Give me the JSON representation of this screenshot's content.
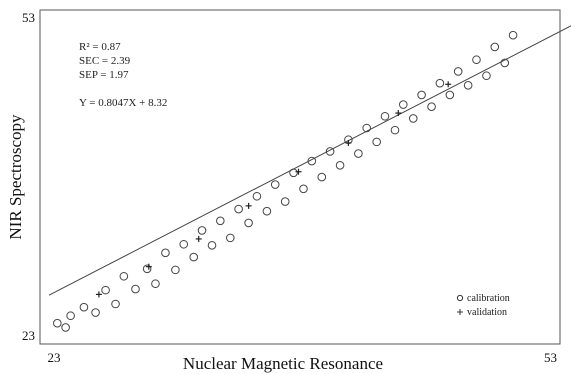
{
  "chart_data": {
    "type": "scatter",
    "title": "",
    "xlabel": "Nuclear Magnetic Resonance",
    "ylabel": "NIR Spectroscopy",
    "xlim": [
      23,
      53
    ],
    "ylim": [
      23,
      53
    ],
    "x_tick_labels": [
      "23",
      "53"
    ],
    "y_tick_labels": [
      "53",
      "23"
    ],
    "grid": false,
    "legend_position": "bottom-right",
    "stats": {
      "r2": "R² = 0.87",
      "sec": "SEC = 2.39",
      "sep": "SEP = 1.97",
      "equation": "Y = 0.8047X + 8.32"
    },
    "fit_line": {
      "slope": 0.8047,
      "intercept": 8.32
    },
    "series": [
      {
        "name": "calibration",
        "marker": "circle",
        "points": [
          [
            23.5,
            24.2
          ],
          [
            24.0,
            23.8
          ],
          [
            24.3,
            24.9
          ],
          [
            25.1,
            25.7
          ],
          [
            25.8,
            25.2
          ],
          [
            26.4,
            27.3
          ],
          [
            27.0,
            26.0
          ],
          [
            27.5,
            28.6
          ],
          [
            28.2,
            27.4
          ],
          [
            28.9,
            29.3
          ],
          [
            29.4,
            27.9
          ],
          [
            30.0,
            30.8
          ],
          [
            30.6,
            29.2
          ],
          [
            31.1,
            31.6
          ],
          [
            31.7,
            30.4
          ],
          [
            32.2,
            32.9
          ],
          [
            32.8,
            31.5
          ],
          [
            33.3,
            33.8
          ],
          [
            33.9,
            32.2
          ],
          [
            34.4,
            34.9
          ],
          [
            35.0,
            33.6
          ],
          [
            35.5,
            36.1
          ],
          [
            36.1,
            34.7
          ],
          [
            36.6,
            37.2
          ],
          [
            37.2,
            35.6
          ],
          [
            37.7,
            38.3
          ],
          [
            38.3,
            36.8
          ],
          [
            38.8,
            39.4
          ],
          [
            39.4,
            37.9
          ],
          [
            39.9,
            40.3
          ],
          [
            40.5,
            39.0
          ],
          [
            41.0,
            41.4
          ],
          [
            41.6,
            40.1
          ],
          [
            42.1,
            42.5
          ],
          [
            42.7,
            41.2
          ],
          [
            43.2,
            43.6
          ],
          [
            43.8,
            42.3
          ],
          [
            44.3,
            44.7
          ],
          [
            44.9,
            43.4
          ],
          [
            45.4,
            45.6
          ],
          [
            46.0,
            44.5
          ],
          [
            46.5,
            46.7
          ],
          [
            47.1,
            45.6
          ],
          [
            47.6,
            47.8
          ],
          [
            48.2,
            46.5
          ],
          [
            48.7,
            48.9
          ],
          [
            49.3,
            47.4
          ],
          [
            49.8,
            50.1
          ],
          [
            50.4,
            48.6
          ],
          [
            50.9,
            51.2
          ]
        ]
      },
      {
        "name": "validation",
        "marker": "plus",
        "points": [
          [
            26.0,
            26.9
          ],
          [
            29.0,
            29.5
          ],
          [
            32.0,
            32.1
          ],
          [
            35.0,
            35.2
          ],
          [
            38.0,
            38.4
          ],
          [
            41.0,
            41.1
          ],
          [
            44.0,
            43.9
          ],
          [
            47.0,
            46.6
          ]
        ]
      }
    ]
  }
}
